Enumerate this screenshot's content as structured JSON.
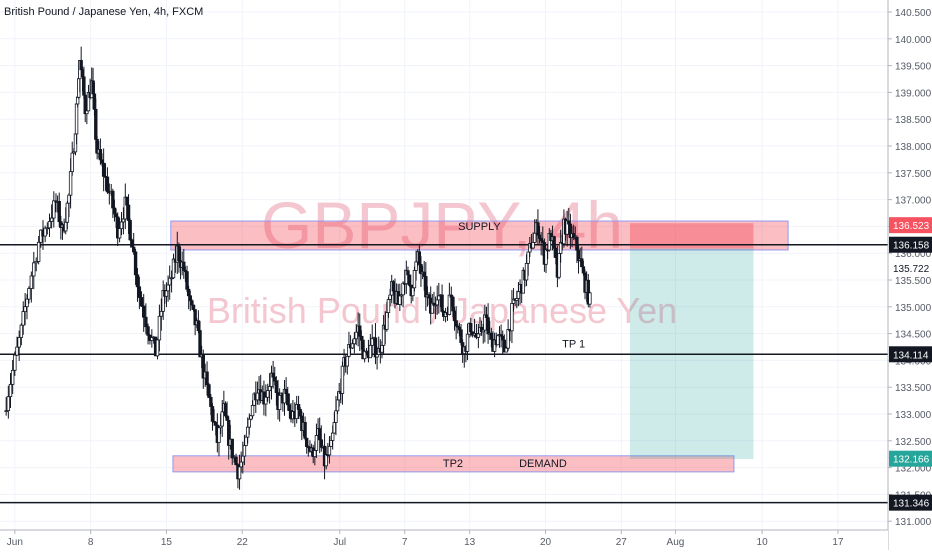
{
  "chart_data": {
    "type": "candlestick",
    "title": "British Pound / Japanese Yen, 4h, FXCM",
    "watermark": {
      "symbol": "GBPJPY, 4h",
      "name": "British Pound / Japanese Yen"
    },
    "ylim": [
      131.0,
      140.75
    ],
    "y_ticks": [
      "131.000",
      "131.500",
      "132.000",
      "132.500",
      "133.000",
      "133.500",
      "134.000",
      "134.500",
      "135.000",
      "135.500",
      "136.000",
      "136.500",
      "137.000",
      "137.500",
      "138.000",
      "138.500",
      "139.000",
      "139.500",
      "140.000",
      "140.500"
    ],
    "x_ticks": [
      {
        "label": "Jun",
        "day": 1
      },
      {
        "label": "8",
        "day": 8
      },
      {
        "label": "15",
        "day": 15
      },
      {
        "label": "22",
        "day": 22
      },
      {
        "label": "Jul",
        "day": 31
      },
      {
        "label": "7",
        "day": 37
      },
      {
        "label": "13",
        "day": 43
      },
      {
        "label": "20",
        "day": 50
      },
      {
        "label": "27",
        "day": 57
      },
      {
        "label": "Aug",
        "day": 62
      },
      {
        "label": "10",
        "day": 70
      },
      {
        "label": "17",
        "day": 77
      }
    ],
    "price_labels": [
      {
        "value": "136.523",
        "price": 136.523,
        "kind": "red"
      },
      {
        "value": "136.158",
        "price": 136.158,
        "kind": "dark"
      },
      {
        "value": "135.722",
        "price": 135.722,
        "kind": "plain"
      },
      {
        "value": "134.114",
        "price": 134.114,
        "kind": "dark"
      },
      {
        "value": "132.166",
        "price": 132.166,
        "kind": "green"
      },
      {
        "value": "131.346",
        "price": 131.346,
        "kind": "dark"
      }
    ],
    "horizontal_lines": [
      136.158,
      134.114,
      131.346
    ],
    "zones": [
      {
        "label": "SUPPLY",
        "from_day": 15.4,
        "to_day": 72.4,
        "low": 136.06,
        "high": 136.6
      },
      {
        "label": "TP2",
        "label2": "DEMAND",
        "from_day": 15.6,
        "to_day": 67.4,
        "low": 131.92,
        "high": 132.22
      }
    ],
    "annotations": [
      {
        "label": "TP 1",
        "day": 52.6,
        "price": 134.2
      }
    ],
    "short_position": {
      "from_day": 57.8,
      "to_day": 69.2,
      "entry": 136.09,
      "stop": 136.56,
      "target": 132.16
    },
    "price_path": [
      [
        0.0,
        133.05
      ],
      [
        0.8,
        133.8
      ],
      [
        1.6,
        134.55
      ],
      [
        2.3,
        135.4
      ],
      [
        3.2,
        136.2
      ],
      [
        4.0,
        136.55
      ],
      [
        4.8,
        136.95
      ],
      [
        5.4,
        136.4
      ],
      [
        6.0,
        137.05
      ],
      [
        6.6,
        138.4
      ],
      [
        7.0,
        139.6
      ],
      [
        7.5,
        138.7
      ],
      [
        8.1,
        139.15
      ],
      [
        8.6,
        137.9
      ],
      [
        9.2,
        137.5
      ],
      [
        9.9,
        137.0
      ],
      [
        10.5,
        136.45
      ],
      [
        11.2,
        136.9
      ],
      [
        11.8,
        136.25
      ],
      [
        12.5,
        135.2
      ],
      [
        13.3,
        134.6
      ],
      [
        14.0,
        134.15
      ],
      [
        14.7,
        135.2
      ],
      [
        15.3,
        135.4
      ],
      [
        16.0,
        136.05
      ],
      [
        16.6,
        135.7
      ],
      [
        17.2,
        135.0
      ],
      [
        17.8,
        134.6
      ],
      [
        18.4,
        133.8
      ],
      [
        19.1,
        133.1
      ],
      [
        19.7,
        132.5
      ],
      [
        20.3,
        133.05
      ],
      [
        20.9,
        132.4
      ],
      [
        21.6,
        131.95
      ],
      [
        22.2,
        132.25
      ],
      [
        22.8,
        133.1
      ],
      [
        23.4,
        133.55
      ],
      [
        24.0,
        133.3
      ],
      [
        24.7,
        133.7
      ],
      [
        25.3,
        133.2
      ],
      [
        25.9,
        133.35
      ],
      [
        26.5,
        132.95
      ],
      [
        27.2,
        133.05
      ],
      [
        27.8,
        132.6
      ],
      [
        28.4,
        132.25
      ],
      [
        29.0,
        132.6
      ],
      [
        29.6,
        132.1
      ],
      [
        30.2,
        132.35
      ],
      [
        30.8,
        133.2
      ],
      [
        31.4,
        133.9
      ],
      [
        32.0,
        134.3
      ],
      [
        32.7,
        134.6
      ],
      [
        33.3,
        134.05
      ],
      [
        34.0,
        134.3
      ],
      [
        34.6,
        134.15
      ],
      [
        35.2,
        134.7
      ],
      [
        35.8,
        135.3
      ],
      [
        36.4,
        135.05
      ],
      [
        37.0,
        135.6
      ],
      [
        37.6,
        135.35
      ],
      [
        38.2,
        135.9
      ],
      [
        38.8,
        135.4
      ],
      [
        39.4,
        134.9
      ],
      [
        40.0,
        135.3
      ],
      [
        40.6,
        134.85
      ],
      [
        41.3,
        135.2
      ],
      [
        41.9,
        134.6
      ],
      [
        42.5,
        134.2
      ],
      [
        43.1,
        134.65
      ],
      [
        43.8,
        134.35
      ],
      [
        44.4,
        134.8
      ],
      [
        45.0,
        134.3
      ],
      [
        45.6,
        134.45
      ],
      [
        46.2,
        134.2
      ],
      [
        46.9,
        134.9
      ],
      [
        47.5,
        135.25
      ],
      [
        48.1,
        135.6
      ],
      [
        48.7,
        136.2
      ],
      [
        49.3,
        136.5
      ],
      [
        49.9,
        135.95
      ],
      [
        50.5,
        136.35
      ],
      [
        51.1,
        135.6
      ],
      [
        51.7,
        136.55
      ],
      [
        52.3,
        136.35
      ],
      [
        52.9,
        136.1
      ],
      [
        53.5,
        135.55
      ],
      [
        54.1,
        135.1
      ]
    ]
  }
}
